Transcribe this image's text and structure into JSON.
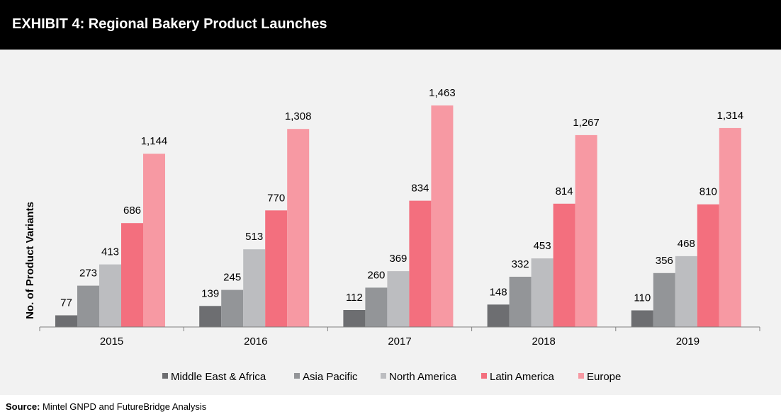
{
  "header": {
    "title": "EXHIBIT 4: Regional Bakery Product Launches"
  },
  "footer": {
    "source_label": "Source:",
    "source_text": " Mintel GNPD and FutureBridge Analysis"
  },
  "chart_data": {
    "type": "bar",
    "title": "",
    "xlabel": "",
    "ylabel": "No. of Product Variants",
    "ylim": [
      0,
      1463
    ],
    "grid": false,
    "legend_position": "bottom",
    "categories": [
      "2015",
      "2016",
      "2017",
      "2018",
      "2019"
    ],
    "series": [
      {
        "name": "Middle East & Africa",
        "color": "#6d6e71",
        "values": [
          77,
          139,
          112,
          148,
          110
        ],
        "labels": [
          "77",
          "139",
          "112",
          "148",
          "110"
        ]
      },
      {
        "name": "Asia Pacific",
        "color": "#939598",
        "values": [
          273,
          245,
          260,
          332,
          356
        ],
        "labels": [
          "273",
          "245",
          "260",
          "332",
          "356"
        ]
      },
      {
        "name": "North America",
        "color": "#bcbdc0",
        "values": [
          413,
          513,
          369,
          453,
          468
        ],
        "labels": [
          "413",
          "513",
          "369",
          "453",
          "468"
        ]
      },
      {
        "name": "Latin America",
        "color": "#f36f7e",
        "values": [
          686,
          770,
          834,
          814,
          810
        ],
        "labels": [
          "686",
          "770",
          "834",
          "814",
          "810"
        ]
      },
      {
        "name": "Europe",
        "color": "#f799a3",
        "values": [
          1144,
          1308,
          1463,
          1267,
          1314
        ],
        "labels": [
          "1,144",
          "1,308",
          "1,463",
          "1,267",
          "1,314"
        ]
      }
    ]
  }
}
